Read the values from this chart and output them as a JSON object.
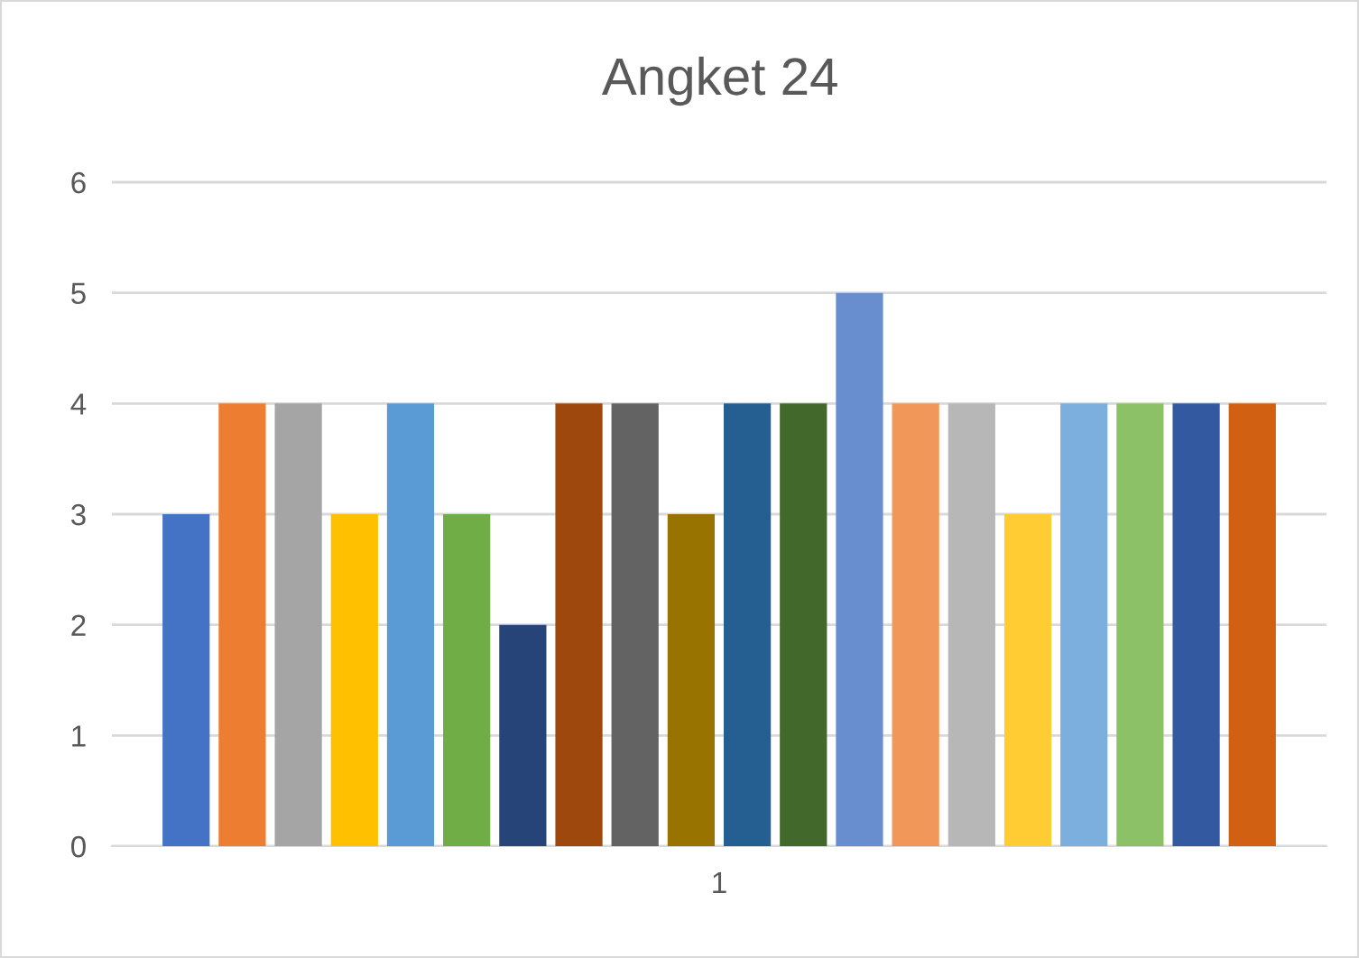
{
  "chart_data": {
    "type": "bar",
    "title": "Angket 24",
    "categories": [
      "1"
    ],
    "series": [
      {
        "color": "#4472c4",
        "values": [
          3
        ]
      },
      {
        "color": "#ed7d31",
        "values": [
          4
        ]
      },
      {
        "color": "#a5a5a5",
        "values": [
          4
        ]
      },
      {
        "color": "#ffc000",
        "values": [
          3
        ]
      },
      {
        "color": "#5b9bd5",
        "values": [
          4
        ]
      },
      {
        "color": "#70ad47",
        "values": [
          3
        ]
      },
      {
        "color": "#264478",
        "values": [
          2
        ]
      },
      {
        "color": "#9e480e",
        "values": [
          4
        ]
      },
      {
        "color": "#636363",
        "values": [
          4
        ]
      },
      {
        "color": "#997300",
        "values": [
          3
        ]
      },
      {
        "color": "#255e91",
        "values": [
          4
        ]
      },
      {
        "color": "#43682b",
        "values": [
          4
        ]
      },
      {
        "color": "#698ed0",
        "values": [
          5
        ]
      },
      {
        "color": "#f1975a",
        "values": [
          4
        ]
      },
      {
        "color": "#b7b7b7",
        "values": [
          4
        ]
      },
      {
        "color": "#ffcd33",
        "values": [
          3
        ]
      },
      {
        "color": "#7cafdd",
        "values": [
          4
        ]
      },
      {
        "color": "#8cc168",
        "values": [
          4
        ]
      },
      {
        "color": "#335aa1",
        "values": [
          4
        ]
      },
      {
        "color": "#d26012",
        "values": [
          4
        ]
      }
    ],
    "ylim": [
      0,
      6
    ],
    "yticks": [
      0,
      1,
      2,
      3,
      4,
      5,
      6
    ],
    "grid": "y"
  }
}
